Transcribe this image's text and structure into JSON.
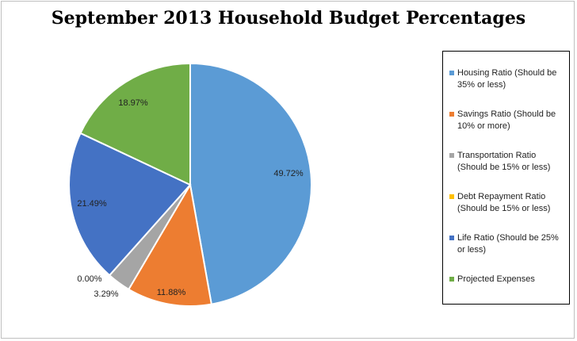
{
  "chart_data": {
    "type": "pie",
    "title": "September 2013 Household Budget Percentages",
    "slices": [
      {
        "name": "Housing Ratio (Should be 35% or less)",
        "value": 49.72,
        "label": "49.72%",
        "color": "#5b9bd5"
      },
      {
        "name": "Savings Ratio (Should be 10% or more)",
        "value": 11.88,
        "label": "11.88%",
        "color": "#ed7d31"
      },
      {
        "name": "Transportation Ratio (Should be 15% or less)",
        "value": 3.29,
        "label": "3.29%",
        "color": "#a5a5a5"
      },
      {
        "name": "Debt Repayment Ratio (Should be 15% or less)",
        "value": 0.0,
        "label": "0.00%",
        "color": "#ffc000"
      },
      {
        "name": "Life Ratio (Should be 25% or less)",
        "value": 21.49,
        "label": "21.49%",
        "color": "#4472c4"
      },
      {
        "name": "Projected Expenses",
        "value": 18.97,
        "label": "18.97%",
        "color": "#70ad47"
      }
    ],
    "legend_position": "right"
  }
}
